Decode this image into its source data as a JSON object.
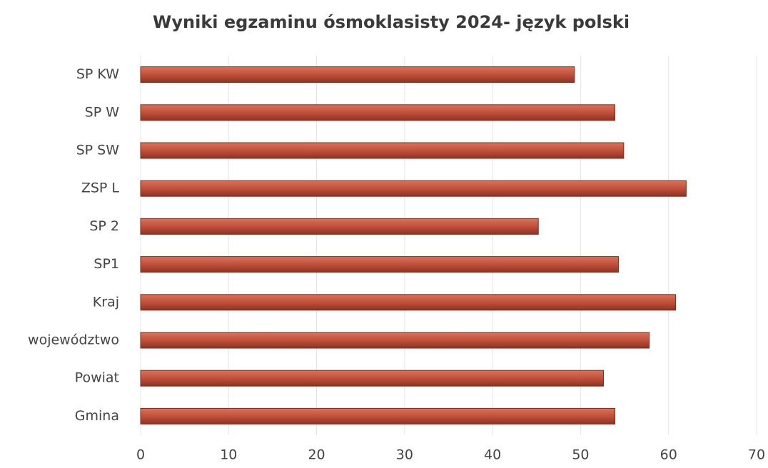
{
  "chart_data": {
    "type": "bar",
    "orientation": "horizontal",
    "title": "Wyniki egzaminu ósmoklasisty 2024- język polski",
    "categories": [
      "SP KW",
      "SP W",
      "SP SW",
      "ZSP L",
      "SP 2",
      "SP1",
      "Kraj",
      "województwo",
      "Powiat",
      "Gmina"
    ],
    "values": [
      49.3,
      53.9,
      54.9,
      62.0,
      45.2,
      54.3,
      60.8,
      57.8,
      52.6,
      53.9
    ],
    "color": "#c0503a",
    "xlim": [
      0,
      70
    ],
    "xticks": [
      0,
      10,
      20,
      30,
      40,
      50,
      60,
      70
    ],
    "grid": true
  }
}
